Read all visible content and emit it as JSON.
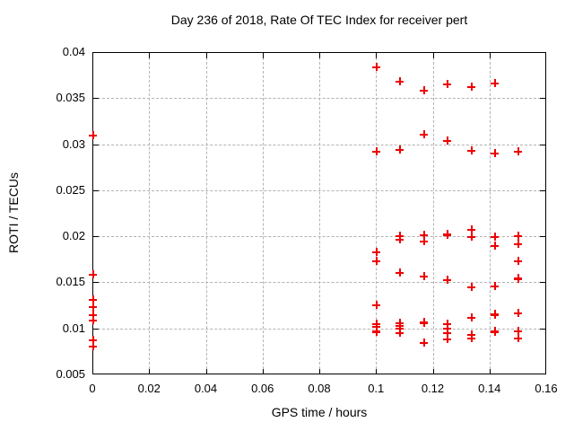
{
  "chart_data": {
    "type": "scatter",
    "title": "Day 236 of 2018, Rate Of TEC Index for receiver pert",
    "xlabel": "GPS time / hours",
    "ylabel": "ROTI / TECUs",
    "xlim": [
      0,
      0.16
    ],
    "ylim": [
      0.005,
      0.04
    ],
    "x_ticks": [
      0,
      0.02,
      0.04,
      0.06,
      0.08,
      0.1,
      0.12,
      0.14,
      0.16
    ],
    "x_tick_labels": [
      "0",
      "0.02",
      "0.04",
      "0.06",
      "0.08",
      "0.1",
      "0.12",
      "0.14",
      "0.16"
    ],
    "y_ticks": [
      0.005,
      0.01,
      0.015,
      0.02,
      0.025,
      0.03,
      0.035,
      0.04
    ],
    "y_tick_labels": [
      "0.005",
      "0.01",
      "0.015",
      "0.02",
      "0.025",
      "0.03",
      "0.035",
      "0.04"
    ],
    "grid": true,
    "legend": "none",
    "marker": "plus",
    "marker_color": "#ee0000",
    "grid_color": "#b3b3b3",
    "series": [
      {
        "name": "ROTI",
        "points": [
          [
            0,
            0.031
          ],
          [
            0,
            0.0159
          ],
          [
            0,
            0.0132
          ],
          [
            0,
            0.0124
          ],
          [
            0,
            0.0115
          ],
          [
            0,
            0.0109
          ],
          [
            0,
            0.0088
          ],
          [
            0,
            0.0081
          ],
          [
            0.1,
            0.0384
          ],
          [
            0.1,
            0.0293
          ],
          [
            0.1,
            0.0184
          ],
          [
            0.1,
            0.0174
          ],
          [
            0.1,
            0.0126
          ],
          [
            0.1,
            0.0106
          ],
          [
            0.1,
            0.0103
          ],
          [
            0.1,
            0.0098
          ],
          [
            0.1,
            0.0097
          ],
          [
            0.1083,
            0.0369
          ],
          [
            0.1083,
            0.0295
          ],
          [
            0.1083,
            0.0201
          ],
          [
            0.1083,
            0.0197
          ],
          [
            0.1083,
            0.0161
          ],
          [
            0.1083,
            0.0107
          ],
          [
            0.1083,
            0.0104
          ],
          [
            0.1083,
            0.0101
          ],
          [
            0.1083,
            0.0096
          ],
          [
            0.1167,
            0.0359
          ],
          [
            0.1167,
            0.0311
          ],
          [
            0.1167,
            0.0202
          ],
          [
            0.1167,
            0.0195
          ],
          [
            0.1167,
            0.0157
          ],
          [
            0.1167,
            0.0108
          ],
          [
            0.1167,
            0.0107
          ],
          [
            0.1167,
            0.0085
          ],
          [
            0.125,
            0.0366
          ],
          [
            0.125,
            0.0304
          ],
          [
            0.125,
            0.0203
          ],
          [
            0.125,
            0.0202
          ],
          [
            0.125,
            0.0153
          ],
          [
            0.125,
            0.0106
          ],
          [
            0.125,
            0.0101
          ],
          [
            0.125,
            0.0096
          ],
          [
            0.125,
            0.0089
          ],
          [
            0.1333,
            0.0363
          ],
          [
            0.1333,
            0.0294
          ],
          [
            0.1333,
            0.0208
          ],
          [
            0.1333,
            0.02
          ],
          [
            0.1333,
            0.0146
          ],
          [
            0.1333,
            0.0112
          ],
          [
            0.1333,
            0.0094
          ],
          [
            0.1333,
            0.009
          ],
          [
            0.1417,
            0.0367
          ],
          [
            0.1417,
            0.0291
          ],
          [
            0.1417,
            0.02
          ],
          [
            0.1417,
            0.019
          ],
          [
            0.1417,
            0.0147
          ],
          [
            0.1417,
            0.0116
          ],
          [
            0.1417,
            0.0115
          ],
          [
            0.1417,
            0.0098
          ],
          [
            0.1417,
            0.0097
          ],
          [
            0.15,
            0.0293
          ],
          [
            0.15,
            0.0201
          ],
          [
            0.15,
            0.0192
          ],
          [
            0.15,
            0.0174
          ],
          [
            0.15,
            0.0155
          ],
          [
            0.15,
            0.0154
          ],
          [
            0.15,
            0.0117
          ],
          [
            0.15,
            0.0098
          ],
          [
            0.15,
            0.009
          ]
        ]
      }
    ]
  }
}
